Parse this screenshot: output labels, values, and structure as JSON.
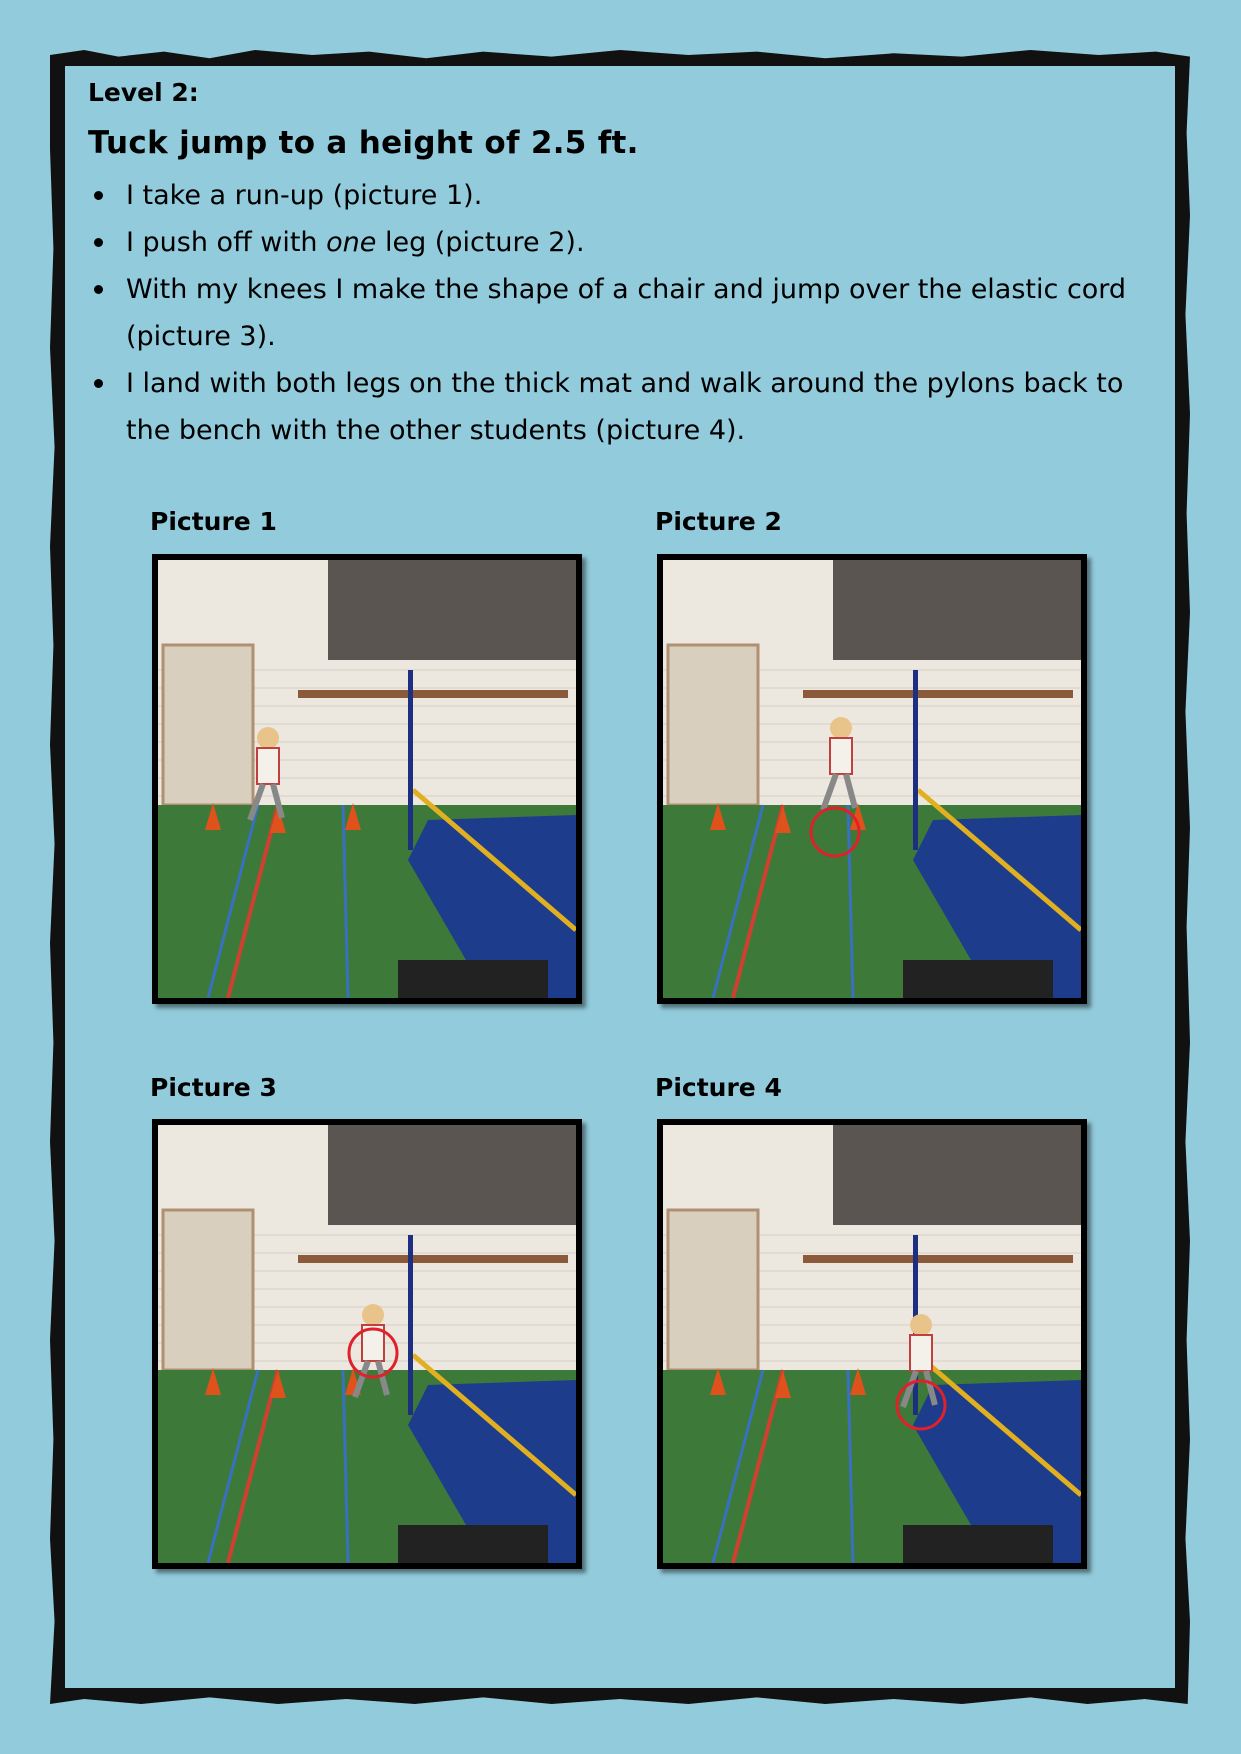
{
  "level": "Level 2:",
  "title": "Tuck jump to a height of 2.5 ft.",
  "steps": [
    {
      "before": "I take a run-up (picture 1).",
      "emph": "",
      "after": ""
    },
    {
      "before": "I push off with ",
      "emph": "one",
      "after": " leg (picture 2)."
    },
    {
      "before": "With my knees I make the shape of a chair and jump over the elastic cord (picture 3).",
      "emph": "",
      "after": ""
    },
    {
      "before": "I land with both legs on the thick mat and walk around the pylons back to the bench with the other students (picture 4).",
      "emph": "",
      "after": ""
    }
  ],
  "pictures": [
    {
      "caption": "Picture 1",
      "kid": "running",
      "circle": false
    },
    {
      "caption": "Picture 2",
      "kid": "pushoff",
      "circle": true
    },
    {
      "caption": "Picture 3",
      "kid": "tuck",
      "circle": true
    },
    {
      "caption": "Picture 4",
      "kid": "landing",
      "circle": true
    }
  ],
  "colors": {
    "background": "#92cbdb",
    "frame": "#111111",
    "floor": "#3d7a3a",
    "mat": "#1e3c8c",
    "cone": "#e0521c",
    "highlight_circle": "#e0202a"
  }
}
